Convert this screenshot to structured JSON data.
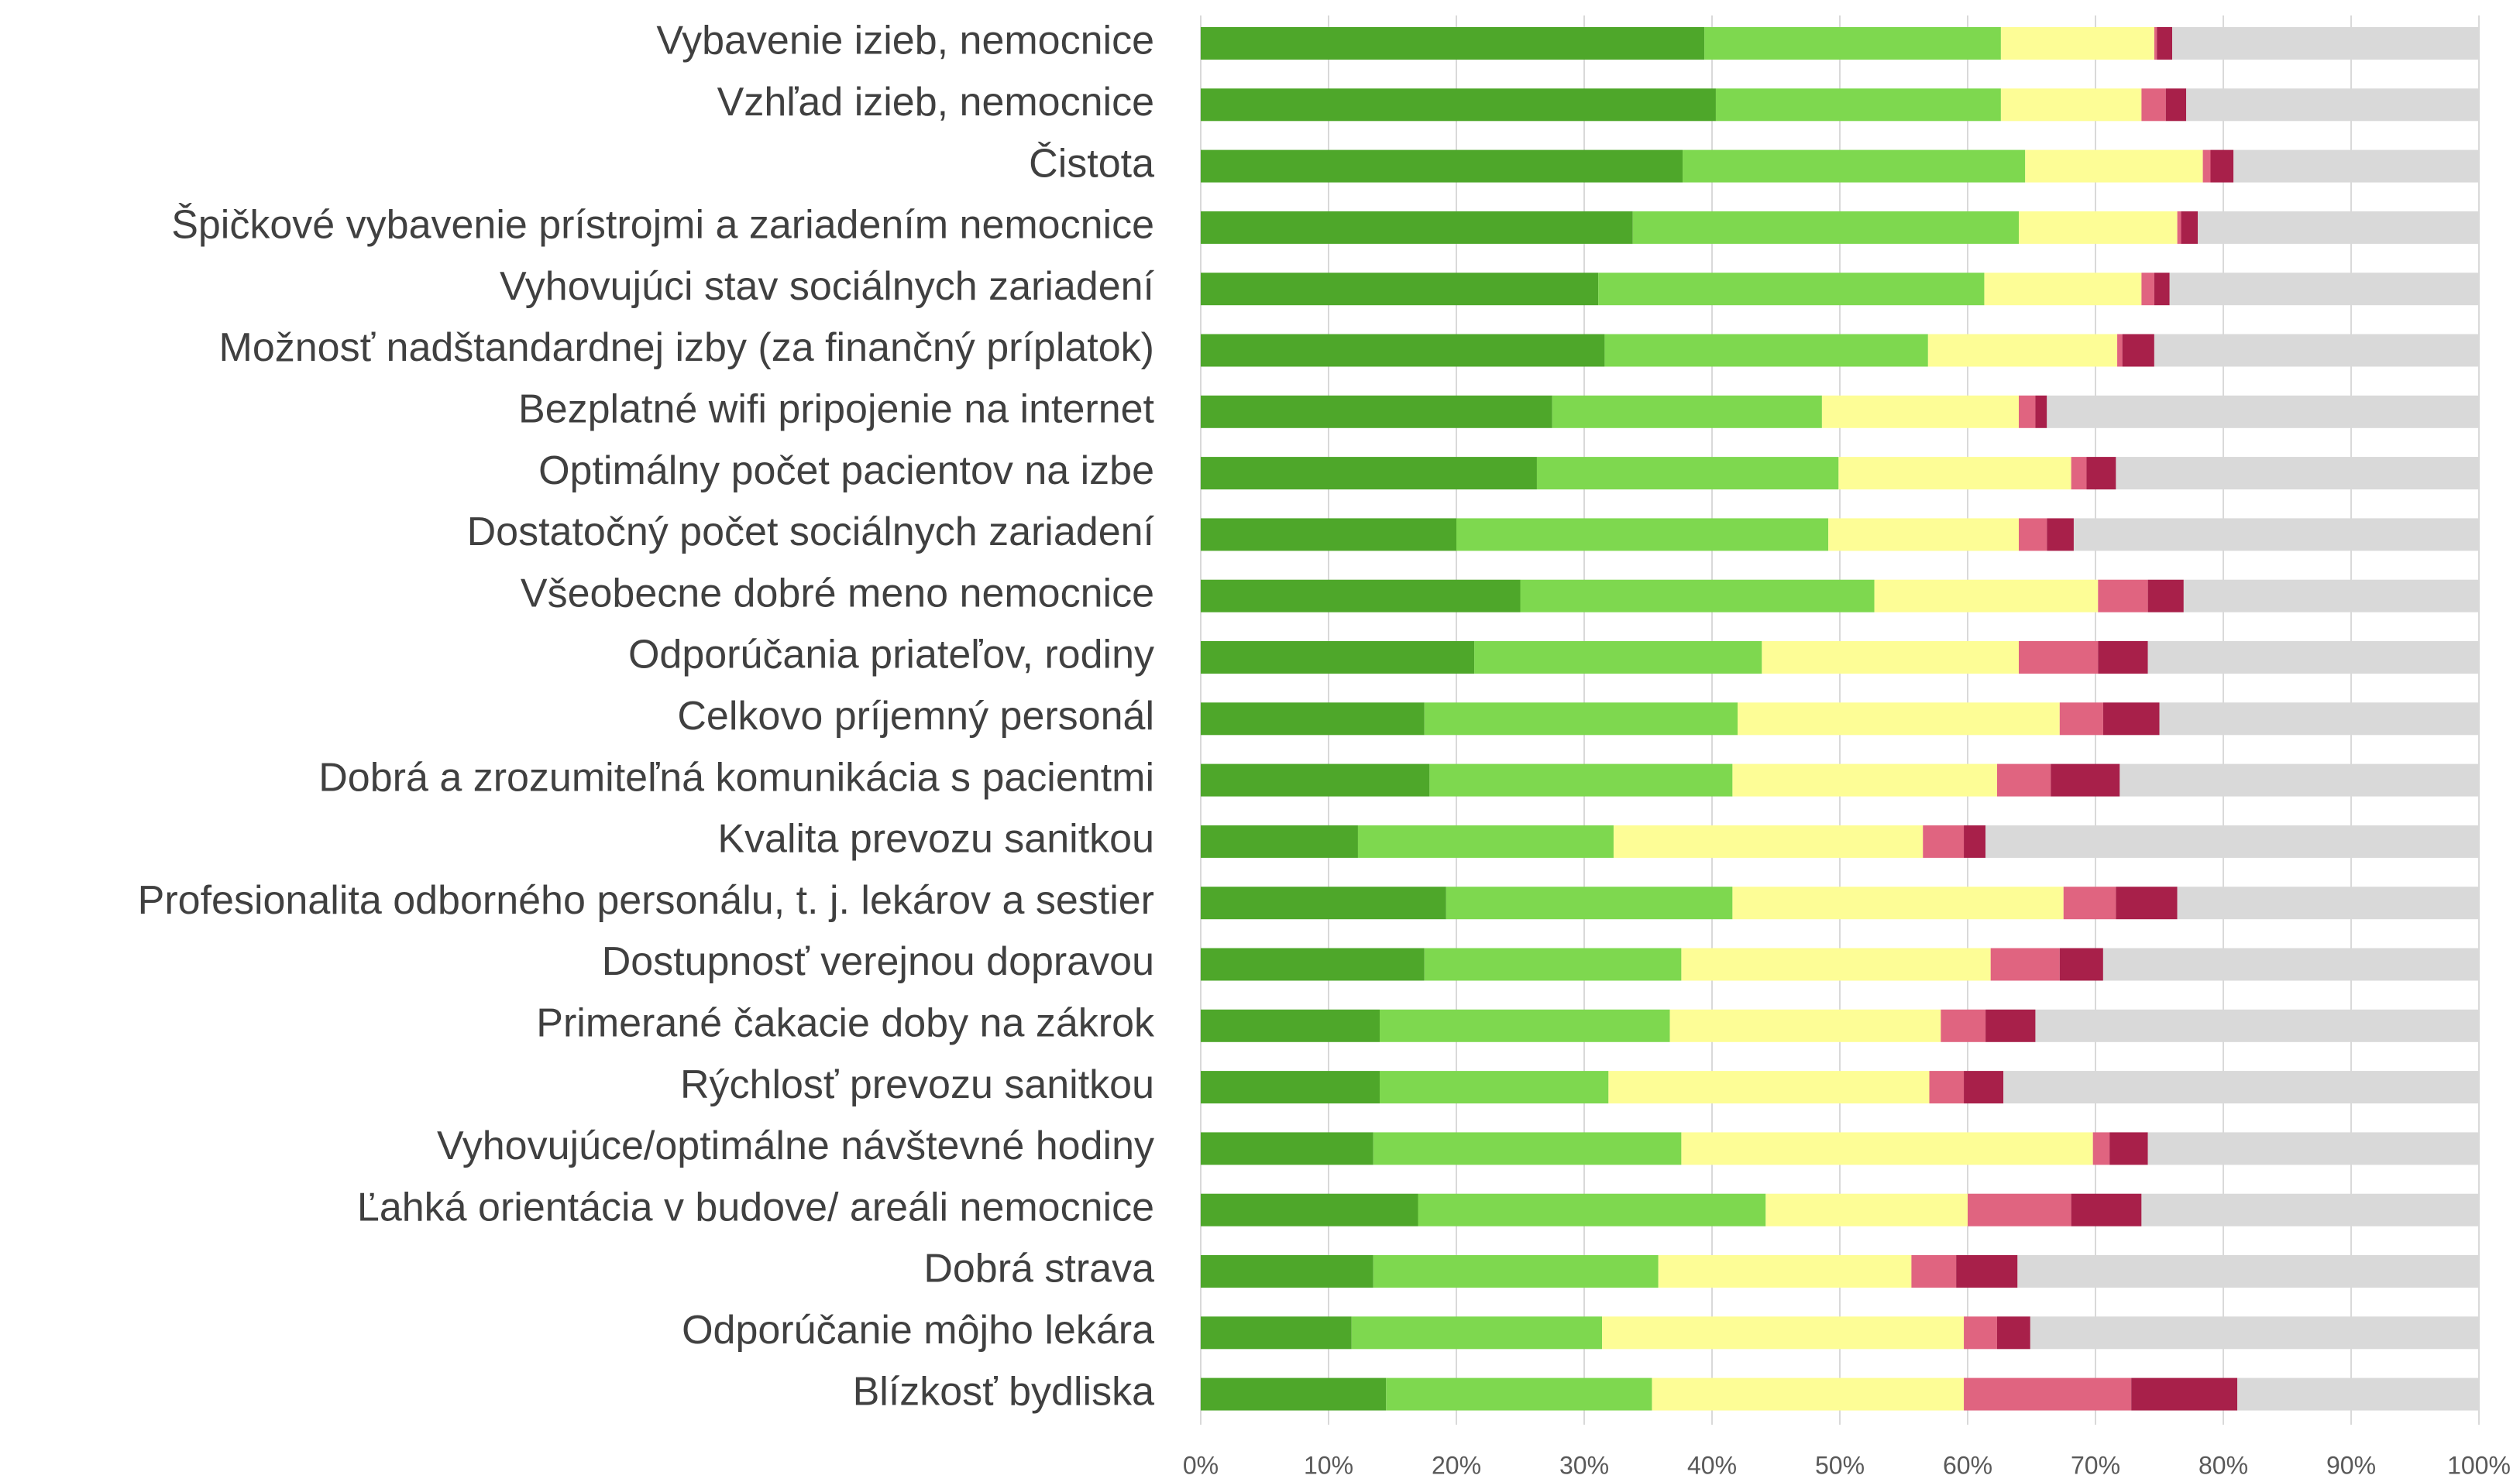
{
  "chart_data": {
    "type": "stacked_barh",
    "categories": [
      "Vybavenie izieb, nemocnice",
      "Vzhľad izieb, nemocnice",
      "Čistota",
      "Špičkové vybavenie prístrojmi a zariadením nemocnice",
      "Vyhovujúci stav sociálnych zariadení",
      "Možnosť nadštandardnej izby (za finančný príplatok)",
      "Bezplatné wifi pripojenie na internet",
      "Optimálny počet pacientov na izbe",
      "Dostatočný počet sociálnych zariadení",
      "Všeobecne dobré meno nemocnice",
      "Odporúčania priateľov, rodiny",
      "Celkovo príjemný personál",
      "Dobrá a zrozumiteľná komunikácia s pacientmi",
      "Kvalita prevozu sanitkou",
      "Profesionalita odborného personálu, t. j. lekárov a sestier",
      "Dostupnosť verejnou dopravou",
      "Primerané čakacie doby na zákrok",
      "Rýchlosť prevozu sanitkou",
      "Vyhovujúce/optimálne návštevné hodiny",
      "Ľahká orientácia v budove/ areáli nemocnice",
      "Dobrá strava",
      "Odporúčanie môjho lekára",
      "Blízkosť bydliska"
    ],
    "series": [
      {
        "color": "#4ea72a",
        "values": [
          39.4,
          40.3,
          37.7,
          33.8,
          31.1,
          31.6,
          27.5,
          26.3,
          20.0,
          25.0,
          21.4,
          17.5,
          17.9,
          12.3,
          19.2,
          17.5,
          14.0,
          14.0,
          13.5,
          17.0,
          13.5,
          11.8,
          14.5
        ]
      },
      {
        "color": "#7ed84f",
        "values": [
          23.2,
          22.3,
          26.8,
          30.2,
          30.2,
          25.3,
          21.1,
          23.6,
          29.1,
          27.7,
          22.5,
          24.5,
          23.7,
          20.0,
          22.4,
          20.1,
          22.7,
          17.9,
          24.1,
          27.2,
          22.3,
          19.6,
          20.8
        ]
      },
      {
        "color": "#fdfd96",
        "values": [
          12.0,
          11.0,
          13.9,
          12.4,
          12.3,
          14.8,
          15.4,
          18.2,
          14.9,
          17.5,
          20.1,
          25.2,
          20.7,
          24.2,
          25.9,
          24.2,
          21.2,
          25.1,
          32.2,
          15.8,
          19.8,
          28.3,
          24.4
        ]
      },
      {
        "color": "#e06480",
        "values": [
          0.2,
          1.9,
          0.6,
          0.3,
          1.0,
          0.4,
          1.3,
          1.2,
          2.2,
          3.9,
          6.2,
          3.4,
          4.2,
          3.2,
          4.1,
          5.4,
          3.5,
          2.7,
          1.3,
          8.1,
          3.5,
          2.6,
          13.1
        ]
      },
      {
        "color": "#a8204a",
        "values": [
          1.2,
          1.6,
          1.8,
          1.3,
          1.2,
          2.5,
          0.9,
          2.3,
          2.1,
          2.8,
          3.9,
          4.4,
          5.4,
          1.7,
          4.8,
          3.4,
          3.9,
          3.1,
          3.0,
          5.5,
          4.8,
          2.6,
          8.3
        ]
      },
      {
        "color": "#d9d9d9",
        "values": [
          24.0,
          22.9,
          19.2,
          22.0,
          24.2,
          25.4,
          33.8,
          28.4,
          31.7,
          23.1,
          25.9,
          25.0,
          28.1,
          38.6,
          23.6,
          29.4,
          34.7,
          37.2,
          25.9,
          26.4,
          36.1,
          35.1,
          18.9
        ]
      }
    ],
    "xlim": [
      0,
      100
    ],
    "xticks": [
      {
        "value": 0,
        "label": "0%"
      },
      {
        "value": 10,
        "label": "10%"
      },
      {
        "value": 20,
        "label": "20%"
      },
      {
        "value": 30,
        "label": "30%"
      },
      {
        "value": 40,
        "label": "40%"
      },
      {
        "value": 50,
        "label": "50%"
      },
      {
        "value": 60,
        "label": "60%"
      },
      {
        "value": 70,
        "label": "70%"
      },
      {
        "value": 80,
        "label": "80%"
      },
      {
        "value": 90,
        "label": "90%"
      },
      {
        "value": 100,
        "label": "100%"
      }
    ],
    "grid": true
  }
}
